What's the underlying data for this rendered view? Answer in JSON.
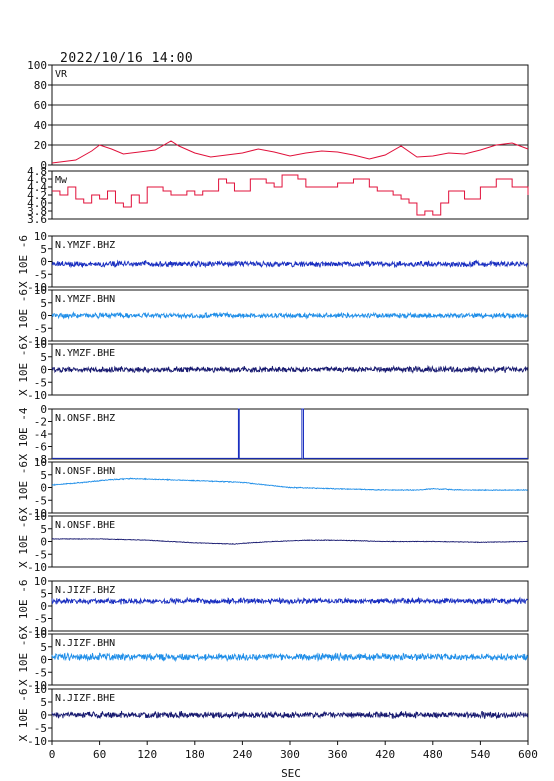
{
  "title": "2022/10/16  14:00",
  "xlabel": "SEC",
  "x_ticks": [
    "0",
    "60",
    "120",
    "180",
    "240",
    "300",
    "360",
    "420",
    "480",
    "540",
    "600"
  ],
  "chart_data": [
    {
      "type": "line",
      "name": "VR",
      "ylim": [
        0,
        100
      ],
      "yticks": [
        "0",
        "20",
        "40",
        "60",
        "80",
        "100"
      ],
      "grid": true,
      "color": "#e0103a",
      "x": [
        0,
        30,
        50,
        60,
        75,
        90,
        110,
        130,
        150,
        160,
        180,
        200,
        220,
        230,
        240,
        260,
        280,
        300,
        320,
        340,
        360,
        380,
        400,
        420,
        440,
        460,
        480,
        500,
        520,
        540,
        560,
        580,
        600
      ],
      "y": [
        2,
        5,
        14,
        20,
        16,
        11,
        13,
        15,
        24,
        19,
        12,
        8,
        10,
        11,
        12,
        16,
        13,
        9,
        12,
        14,
        13,
        10,
        6,
        10,
        19,
        8,
        9,
        12,
        11,
        15,
        20,
        22,
        16
      ]
    },
    {
      "type": "line",
      "name": "Mw",
      "ylim": [
        3.6,
        4.8
      ],
      "yticks": [
        "3.6",
        "3.8",
        "4.0",
        "4.2",
        "4.4",
        "4.6",
        "4.8"
      ],
      "color": "#e0103a",
      "x": [
        0,
        10,
        20,
        30,
        40,
        50,
        60,
        70,
        80,
        90,
        100,
        110,
        120,
        130,
        140,
        150,
        160,
        170,
        180,
        190,
        200,
        210,
        220,
        230,
        240,
        250,
        260,
        270,
        280,
        290,
        300,
        310,
        320,
        340,
        360,
        380,
        400,
        410,
        420,
        430,
        440,
        450,
        460,
        470,
        480,
        490,
        500,
        520,
        540,
        560,
        580,
        600
      ],
      "y": [
        4.3,
        4.2,
        4.4,
        4.1,
        4.0,
        4.2,
        4.1,
        4.3,
        4.0,
        3.9,
        4.2,
        4.0,
        4.4,
        4.4,
        4.3,
        4.2,
        4.2,
        4.3,
        4.2,
        4.3,
        4.3,
        4.6,
        4.5,
        4.3,
        4.3,
        4.6,
        4.6,
        4.5,
        4.4,
        4.7,
        4.7,
        4.6,
        4.4,
        4.4,
        4.5,
        4.6,
        4.4,
        4.3,
        4.3,
        4.2,
        4.1,
        4.0,
        3.7,
        3.8,
        3.7,
        4.0,
        4.3,
        4.1,
        4.4,
        4.6,
        4.4,
        4.2
      ]
    },
    {
      "type": "line",
      "name": "N.YMZF.BHZ",
      "ylabel": "X 10E -6",
      "ylim": [
        -10,
        10
      ],
      "yticks": [
        "-10",
        "-5",
        "0",
        "5",
        "10"
      ],
      "color": "#1a2fc0",
      "x": [
        0,
        600
      ],
      "y": [
        -1,
        -1
      ],
      "noise_amplitude": 0.9
    },
    {
      "type": "line",
      "name": "N.YMZF.BHN",
      "ylabel": "X 10E -6",
      "ylim": [
        -10,
        10
      ],
      "yticks": [
        "-10",
        "-5",
        "0",
        "5",
        "10"
      ],
      "color": "#1f8ee8",
      "x": [
        0,
        600
      ],
      "y": [
        0,
        0
      ],
      "noise_amplitude": 0.8
    },
    {
      "type": "line",
      "name": "N.YMZF.BHE",
      "ylabel": "X 10E -6",
      "ylim": [
        -10,
        10
      ],
      "yticks": [
        "-10",
        "-5",
        "0",
        "5",
        "10"
      ],
      "color": "#181a70",
      "x": [
        0,
        600
      ],
      "y": [
        0,
        0
      ],
      "noise_amplitude": 0.9
    },
    {
      "type": "line",
      "name": "N.ONSF.BHZ",
      "ylabel": "X 10E -4",
      "ylim": [
        -8,
        0
      ],
      "yticks": [
        "-8",
        "-6",
        "-4",
        "-2",
        "0"
      ],
      "color": "#1a2fc0",
      "x": [
        0,
        235,
        235,
        236,
        236,
        315,
        315,
        317,
        317,
        600
      ],
      "y": [
        -7.9,
        -7.9,
        0,
        0,
        -7.9,
        -7.9,
        0,
        0,
        -7.9,
        -7.9
      ]
    },
    {
      "type": "line",
      "name": "N.ONSF.BHN",
      "ylabel": "X 10E -6",
      "ylim": [
        -10,
        10
      ],
      "yticks": [
        "-10",
        "-5",
        "0",
        "5",
        "10"
      ],
      "color": "#1f8ee8",
      "x": [
        0,
        40,
        70,
        100,
        150,
        200,
        240,
        300,
        360,
        420,
        460,
        480,
        520,
        560,
        600
      ],
      "y": [
        1,
        2,
        3,
        3.5,
        3,
        2.5,
        2,
        0,
        -0.5,
        -1,
        -1,
        -0.5,
        -1,
        -1,
        -1
      ],
      "noise_amplitude": 0.15
    },
    {
      "type": "line",
      "name": "N.ONSF.BHE",
      "ylabel": "X 10E -6",
      "ylim": [
        -10,
        10
      ],
      "yticks": [
        "-10",
        "-5",
        "0",
        "5",
        "10"
      ],
      "color": "#181a70",
      "x": [
        0,
        60,
        120,
        180,
        230,
        250,
        280,
        320,
        360,
        420,
        480,
        540,
        600
      ],
      "y": [
        1,
        1,
        0.5,
        -0.5,
        -1,
        -0.5,
        0,
        0.5,
        0.5,
        0,
        0,
        -0.3,
        0
      ],
      "noise_amplitude": 0.1
    },
    {
      "type": "line",
      "name": "N.JIZF.BHZ",
      "ylabel": "X 10E -6",
      "ylim": [
        -10,
        10
      ],
      "yticks": [
        "-10",
        "-5",
        "0",
        "5",
        "10"
      ],
      "color": "#1a2fc0",
      "x": [
        0,
        600
      ],
      "y": [
        2,
        2
      ],
      "noise_amplitude": 0.9
    },
    {
      "type": "line",
      "name": "N.JIZF.BHN",
      "ylabel": "X 10E -6",
      "ylim": [
        -10,
        10
      ],
      "yticks": [
        "-10",
        "-5",
        "0",
        "5",
        "10"
      ],
      "color": "#1f8ee8",
      "x": [
        0,
        600
      ],
      "y": [
        1,
        1
      ],
      "noise_amplitude": 1.1
    },
    {
      "type": "line",
      "name": "N.JIZF.BHE",
      "ylabel": "X 10E -6",
      "ylim": [
        -10,
        10
      ],
      "yticks": [
        "-10",
        "-5",
        "0",
        "5",
        "10"
      ],
      "color": "#181a70",
      "x": [
        0,
        600
      ],
      "y": [
        0,
        0
      ],
      "noise_amplitude": 1.0
    }
  ]
}
